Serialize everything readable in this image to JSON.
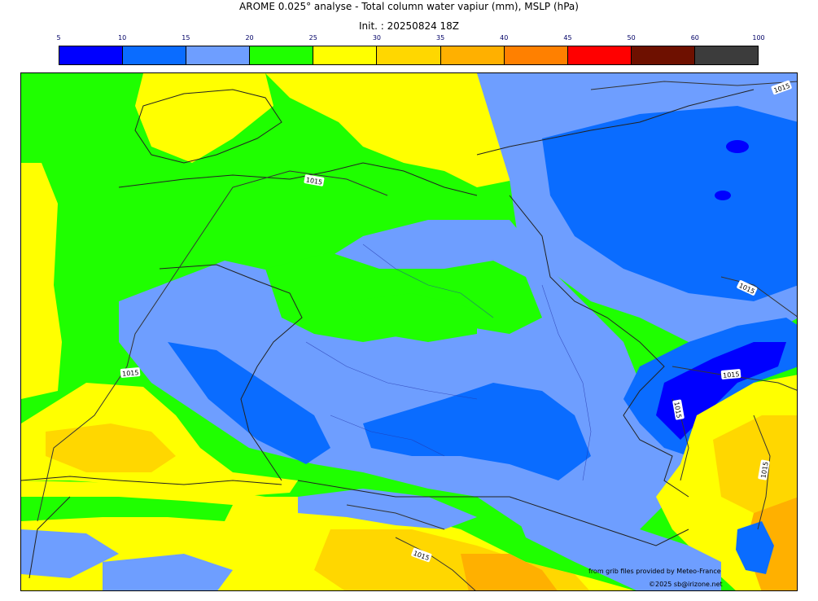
{
  "header": {
    "title": "AROME 0.025° analyse - Total column water vapiur (mm), MSLP (hPa)",
    "subtitle": "Init. : 20250824 18Z"
  },
  "legend": {
    "ticks": [
      "5",
      "10",
      "15",
      "20",
      "25",
      "30",
      "35",
      "40",
      "45",
      "50",
      "60",
      "100"
    ],
    "colors": [
      "#0000ff",
      "#0a6cff",
      "#6e9eff",
      "#1fff00",
      "#ffff00",
      "#ffd700",
      "#ffb000",
      "#ff8000",
      "#ff0000",
      "#6e1000",
      "#3c3c3c"
    ]
  },
  "map": {
    "isobar_labels": [
      "1015",
      "1015",
      "1015",
      "1015",
      "1015",
      "1015",
      "1015",
      "1015"
    ]
  },
  "footer": {
    "source": "from grib files provided by Meteo-France",
    "copyright": "©2025 sb@irizone.net"
  }
}
